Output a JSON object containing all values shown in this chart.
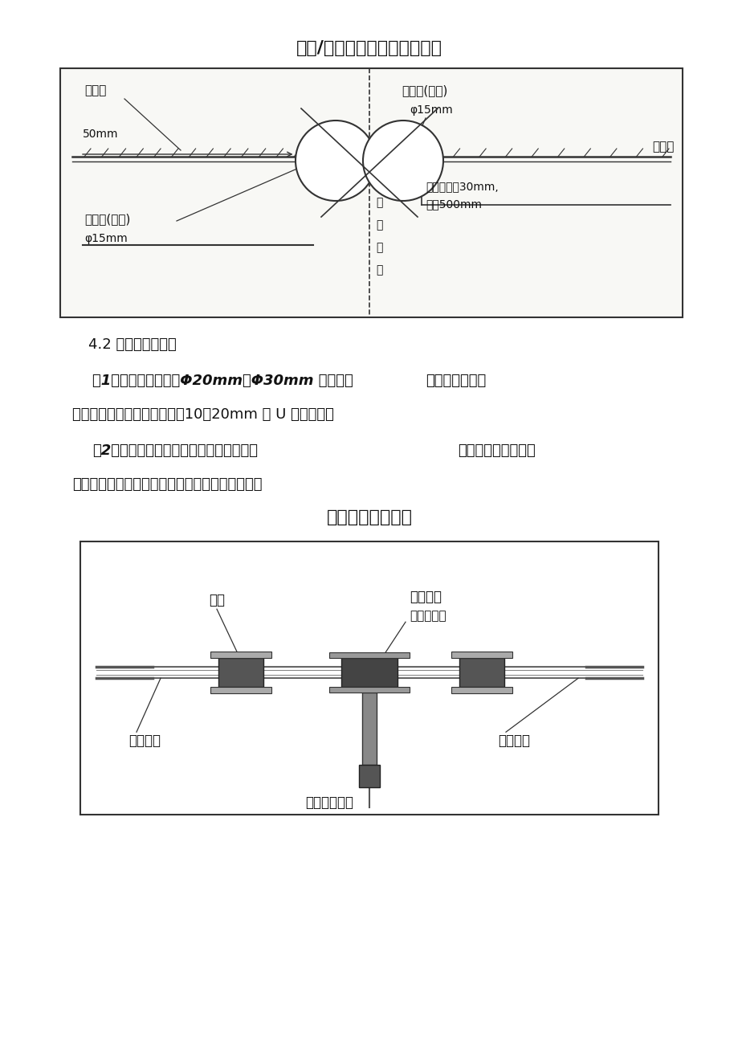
{
  "title1": "注浆/排气软管安装固定示意图",
  "title2": "注浆管三通连接图",
  "section_title": "4.2 径向排气管安装",
  "para1_bold": "（1）径向排气管采用Φ20mm～Φ30mm 的钢管，",
  "para1_normal": "严禁使用塑质材",
  "para1_cont": "料，顶部关口设深度和宽度为10～20mm 的 U 型溢浆槽。",
  "para2_bold": "（2）径向排气管通过法兰盘或套丝连接，",
  "para2_normal": "顶部管口与防水层顶",
  "para2_cont": "紧，使防水层与基面密贴，注浆管采用三通连接。",
  "d1_label_rfh": "热融焊",
  "d1_label_pqg": "排气管(白色)",
  "d1_label_phi_top": "φ15mm",
  "d1_label_fsb": "防水板",
  "d1_label_50mm": "50mm",
  "d1_label_zjg": "注浆管(蓝色)",
  "d1_label_phi_bot": "φ15mm",
  "d1_label_fsbtk": "防水板条宽30mm,",
  "d1_label_jj": "间距500mm",
  "d1_tunnel": [
    "隧",
    "道",
    "中",
    "线"
  ],
  "d2_label_gk": "管卡",
  "d2_label_st": "三通接头",
  "d2_label_zjg_only": "仅注浆管用",
  "d2_label_zjrg_l": "注浆软管",
  "d2_label_zjrg_r": "注浆软管",
  "d2_label_gyzjrg": "高压注浆软管",
  "bg_color": "#ffffff",
  "box_face": "#f8f8f5",
  "line_color": "#333333",
  "text_color": "#111111"
}
